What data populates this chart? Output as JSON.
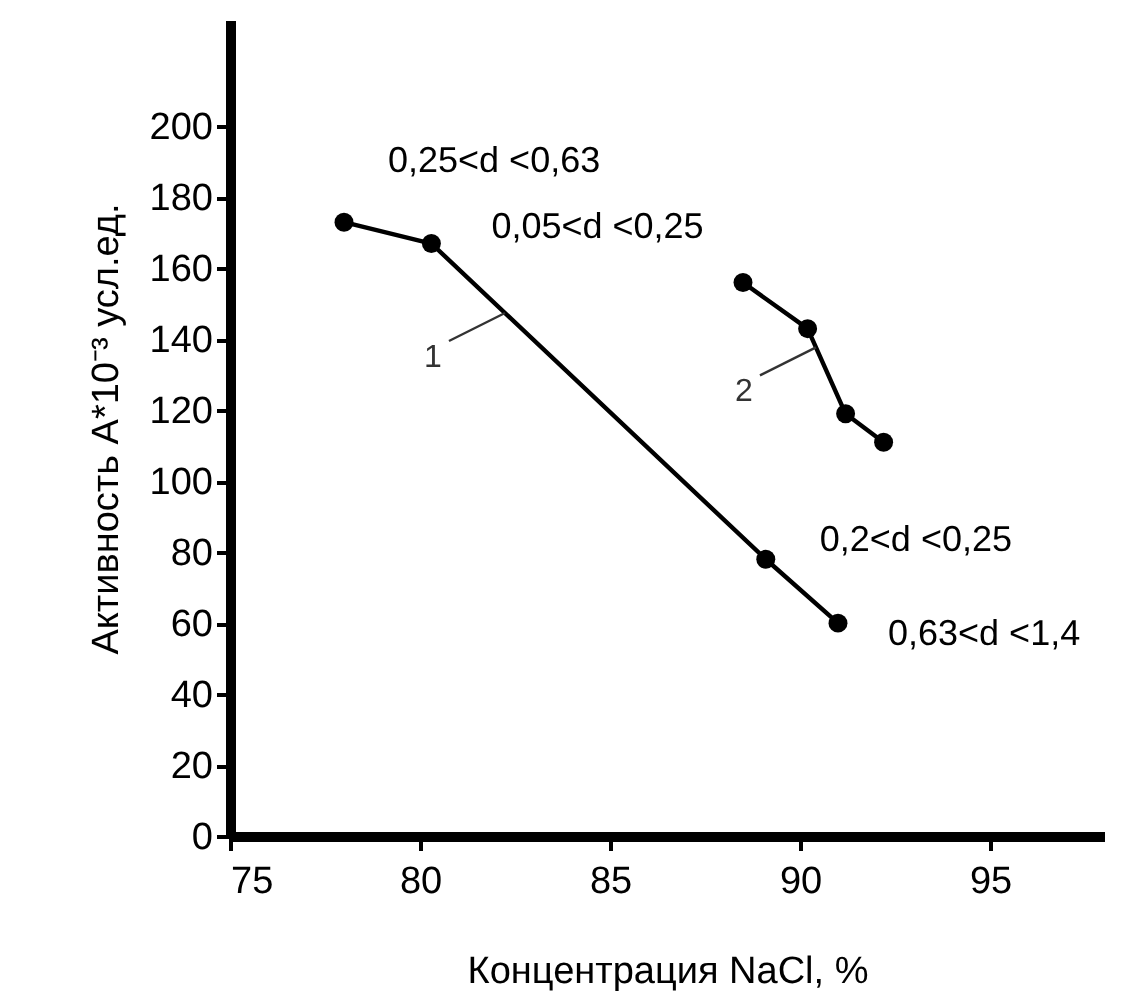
{
  "chart_data": {
    "type": "line",
    "xlabel": "Концентрация NaCl, %",
    "ylabel": "Активность A*10⁻³ усл.ед.",
    "xlim": [
      75,
      98
    ],
    "xticks": [
      75,
      80,
      85,
      90,
      95
    ],
    "ylim": [
      0,
      230
    ],
    "yticks": [
      0,
      20,
      40,
      60,
      80,
      100,
      120,
      140,
      160,
      180,
      200
    ],
    "grid": false,
    "marker": "circle",
    "line_style": "solid",
    "series": [
      {
        "name": "1",
        "color": "#000000",
        "x": [
          78.0,
          80.3,
          89.1,
          91.0
        ],
        "values": [
          173,
          167,
          78,
          60
        ]
      },
      {
        "name": "2",
        "color": "#000000",
        "x": [
          88.5,
          90.2,
          91.2,
          92.2
        ],
        "values": [
          156,
          143,
          119,
          111
        ]
      }
    ],
    "annotations": [
      {
        "text": "0,25<d <0,63",
        "x": 78.0,
        "y": 173
      },
      {
        "text": "0,05<d <0,25",
        "x": 80.3,
        "y": 167
      },
      {
        "text": "0,2<d <0,25",
        "x": 89.1,
        "y": 78
      },
      {
        "text": "0,63<d <1,4",
        "x": 91.0,
        "y": 60
      }
    ]
  }
}
